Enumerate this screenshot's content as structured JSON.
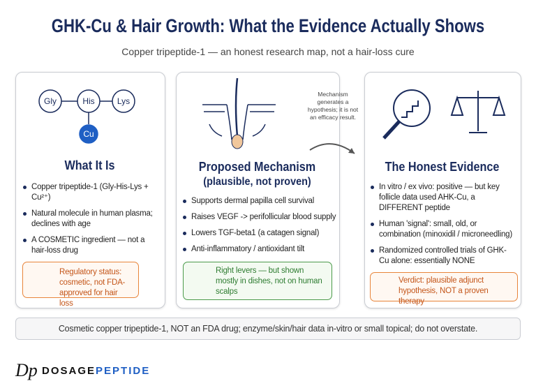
{
  "header": {
    "title": "GHK-Cu & Hair Growth: What the Evidence Actually Shows",
    "subtitle": "Copper tripeptide-1 — an honest research map, not a hair-loss cure"
  },
  "cards": [
    {
      "molecule": [
        "Gly",
        "His",
        "Lys",
        "Cu"
      ],
      "heading": "What It Is",
      "bullets": [
        "Copper tripeptide-1 (Gly-His-Lys + Cu²⁺)",
        "Natural molecule in human plasma; declines with age",
        "A COSMETIC ingredient — not a hair-loss drug"
      ],
      "callout": "Regulatory status: cosmetic, not FDA-approved for hair loss"
    },
    {
      "heading": "Proposed Mechanism",
      "subheading": "(plausible, not proven)",
      "bullets": [
        "Supports dermal papilla cell survival",
        "Raises VEGF -> perifollicular blood supply",
        "Lowers TGF-beta1 (a catagen signal)",
        "Anti-inflammatory / antioxidant tilt"
      ],
      "callout": "Right levers — but shown mostly in dishes, not on human scalps"
    },
    {
      "heading": "The Honest Evidence",
      "bullets": [
        "In vitro / ex vivo: positive — but key follicle data used AHK-Cu, a DIFFERENT peptide",
        "Human 'signal': small, old, or combination (minoxidil / microneedling)",
        "Randomized controlled trials of GHK-Cu alone: essentially NONE"
      ],
      "callout": "Verdict: plausible adjunct hypothesis, NOT a proven therapy"
    }
  ],
  "note": "Mechanism generates a hypothesis; it is not an efficacy result.",
  "footer": "Cosmetic copper tripeptide-1, NOT an FDA drug; enzyme/skin/hair data in-vitro or small topical; do not overstate.",
  "brand": {
    "logo": "Dp",
    "name_1": "DOSAGE",
    "name_2": "PEPTIDE"
  }
}
